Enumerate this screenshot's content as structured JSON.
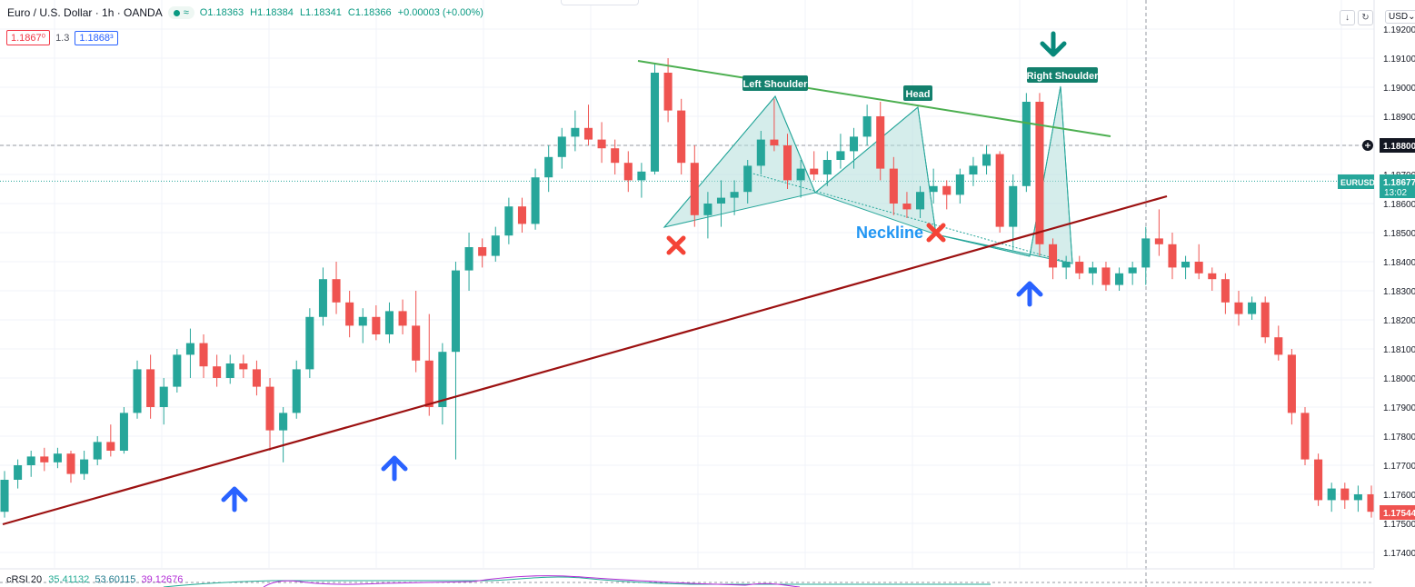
{
  "header": {
    "title": "Euro / U.S. Dollar · 1h · OANDA",
    "status_symbol": "≈",
    "ohlc": {
      "open": "O1.18363",
      "high": "H1.18384",
      "low": "L1.18341",
      "close": "C1.18366",
      "change": "+0.00003 (+0.00%)"
    }
  },
  "quotes": {
    "sell": "1.1867⁰",
    "spread": "1.3",
    "buy": "1.1868³"
  },
  "toolbar": {
    "currency": "USD⌄",
    "download_icon": "↓",
    "reload_icon": "↻"
  },
  "colors": {
    "up": "#26a69a",
    "down": "#ef5350",
    "trendline": "#9c1111",
    "resistance": "#4caf50",
    "pattern_fill": "#b2dfdb",
    "pattern_stroke": "#26a69a",
    "blue_marker": "#2962ff",
    "red_marker": "#f44336",
    "green_marker": "#08887a"
  },
  "price_axis": {
    "ticks": [
      "1.19200",
      "1.19100",
      "1.19000",
      "1.18900",
      "1.18800",
      "1.18700",
      "1.18600",
      "1.18500",
      "1.18400",
      "1.18300",
      "1.18200",
      "1.18100",
      "1.18000",
      "1.17900",
      "1.17800",
      "1.17700",
      "1.17600",
      "1.17500",
      "1.17400"
    ],
    "crosshair_label": "1.18800",
    "symbol_label": "EURUSD",
    "symbol_price": "1.18677",
    "countdown": "13:02",
    "last_price": "1.17544"
  },
  "annotations": {
    "left_shoulder": "Left Shoulder",
    "head": "Head",
    "right_shoulder": "Right Shoulder",
    "neckline": "Neckline"
  },
  "indicator": {
    "name": "cRSI 20",
    "v1": "35.41132",
    "v2": "53.60115",
    "v3": "39.12676"
  },
  "chart_data": {
    "type": "candlestick",
    "symbol": "Euro / U.S. Dollar",
    "timeframe": "1h",
    "ylim": [
      1.174,
      1.1925
    ],
    "candles": [
      [
        1.1754,
        1.1768,
        1.1752,
        1.1765
      ],
      [
        1.1765,
        1.1772,
        1.1762,
        1.177
      ],
      [
        1.177,
        1.1775,
        1.1766,
        1.1773
      ],
      [
        1.1773,
        1.1776,
        1.1768,
        1.1771
      ],
      [
        1.1771,
        1.1776,
        1.1769,
        1.1774
      ],
      [
        1.1774,
        1.1775,
        1.1764,
        1.1767
      ],
      [
        1.1767,
        1.1775,
        1.1765,
        1.1772
      ],
      [
        1.1772,
        1.178,
        1.177,
        1.1778
      ],
      [
        1.1778,
        1.1784,
        1.1773,
        1.1775
      ],
      [
        1.1775,
        1.179,
        1.1774,
        1.1788
      ],
      [
        1.1788,
        1.1806,
        1.1786,
        1.1803
      ],
      [
        1.1803,
        1.1808,
        1.1786,
        1.179
      ],
      [
        1.179,
        1.18,
        1.1784,
        1.1797
      ],
      [
        1.1797,
        1.181,
        1.1795,
        1.1808
      ],
      [
        1.1808,
        1.1817,
        1.18,
        1.1812
      ],
      [
        1.1812,
        1.1815,
        1.18,
        1.1804
      ],
      [
        1.1804,
        1.1808,
        1.1797,
        1.18
      ],
      [
        1.18,
        1.1808,
        1.1798,
        1.1805
      ],
      [
        1.1805,
        1.1808,
        1.18,
        1.1803
      ],
      [
        1.1803,
        1.1806,
        1.1794,
        1.1797
      ],
      [
        1.1797,
        1.18,
        1.1775,
        1.1782
      ],
      [
        1.1782,
        1.179,
        1.1771,
        1.1788
      ],
      [
        1.1788,
        1.1806,
        1.1786,
        1.1803
      ],
      [
        1.1803,
        1.1824,
        1.18,
        1.1821
      ],
      [
        1.1821,
        1.1838,
        1.1818,
        1.1834
      ],
      [
        1.1834,
        1.184,
        1.1822,
        1.1826
      ],
      [
        1.1826,
        1.183,
        1.1814,
        1.1818
      ],
      [
        1.1818,
        1.1824,
        1.1812,
        1.1821
      ],
      [
        1.1821,
        1.1825,
        1.1813,
        1.1815
      ],
      [
        1.1815,
        1.1826,
        1.1812,
        1.1823
      ],
      [
        1.1823,
        1.1827,
        1.1815,
        1.1818
      ],
      [
        1.1818,
        1.183,
        1.1802,
        1.1806
      ],
      [
        1.1806,
        1.1822,
        1.1787,
        1.179
      ],
      [
        1.179,
        1.1812,
        1.1784,
        1.1809
      ],
      [
        1.1809,
        1.184,
        1.1772,
        1.1837
      ],
      [
        1.1837,
        1.185,
        1.183,
        1.1845
      ],
      [
        1.1845,
        1.1848,
        1.1838,
        1.1842
      ],
      [
        1.1842,
        1.1852,
        1.184,
        1.1849
      ],
      [
        1.1849,
        1.1862,
        1.1846,
        1.1859
      ],
      [
        1.1859,
        1.1862,
        1.185,
        1.1853
      ],
      [
        1.1853,
        1.1872,
        1.1851,
        1.1869
      ],
      [
        1.1869,
        1.188,
        1.1864,
        1.1876
      ],
      [
        1.1876,
        1.1886,
        1.1872,
        1.1883
      ],
      [
        1.1883,
        1.1892,
        1.1878,
        1.1886
      ],
      [
        1.1886,
        1.1894,
        1.188,
        1.1882
      ],
      [
        1.1882,
        1.1888,
        1.1874,
        1.1879
      ],
      [
        1.1879,
        1.1882,
        1.187,
        1.1874
      ],
      [
        1.1874,
        1.1878,
        1.1864,
        1.1868
      ],
      [
        1.1868,
        1.1874,
        1.1862,
        1.1871
      ],
      [
        1.1871,
        1.1908,
        1.187,
        1.1905
      ],
      [
        1.1905,
        1.191,
        1.1888,
        1.1892
      ],
      [
        1.1892,
        1.1896,
        1.187,
        1.1874
      ],
      [
        1.1874,
        1.188,
        1.1852,
        1.1856
      ],
      [
        1.1856,
        1.1864,
        1.1848,
        1.186
      ],
      [
        1.186,
        1.1868,
        1.1852,
        1.1862
      ],
      [
        1.1862,
        1.1868,
        1.1856,
        1.1864
      ],
      [
        1.1864,
        1.1875,
        1.186,
        1.1873
      ],
      [
        1.1873,
        1.1885,
        1.187,
        1.1882
      ],
      [
        1.1882,
        1.1896,
        1.1878,
        1.188
      ],
      [
        1.188,
        1.1884,
        1.1865,
        1.1868
      ],
      [
        1.1868,
        1.1875,
        1.1862,
        1.1872
      ],
      [
        1.1872,
        1.1878,
        1.1868,
        1.187
      ],
      [
        1.187,
        1.1878,
        1.1866,
        1.1875
      ],
      [
        1.1875,
        1.1884,
        1.1872,
        1.1878
      ],
      [
        1.1878,
        1.1886,
        1.1872,
        1.1883
      ],
      [
        1.1883,
        1.1894,
        1.188,
        1.189
      ],
      [
        1.189,
        1.1895,
        1.1868,
        1.1872
      ],
      [
        1.1872,
        1.1876,
        1.1856,
        1.186
      ],
      [
        1.186,
        1.1864,
        1.1855,
        1.1858
      ],
      [
        1.1858,
        1.1866,
        1.1855,
        1.1864
      ],
      [
        1.1864,
        1.1872,
        1.186,
        1.1866
      ],
      [
        1.1866,
        1.1868,
        1.1858,
        1.1863
      ],
      [
        1.1863,
        1.1872,
        1.186,
        1.187
      ],
      [
        1.187,
        1.1876,
        1.1866,
        1.1873
      ],
      [
        1.1873,
        1.188,
        1.187,
        1.1877
      ],
      [
        1.1877,
        1.1878,
        1.185,
        1.1852
      ],
      [
        1.1852,
        1.187,
        1.1844,
        1.1866
      ],
      [
        1.1866,
        1.1898,
        1.1864,
        1.1895
      ],
      [
        1.1895,
        1.1898,
        1.1842,
        1.1846
      ],
      [
        1.1846,
        1.1848,
        1.1834,
        1.1838
      ],
      [
        1.1838,
        1.1842,
        1.1834,
        1.184
      ],
      [
        1.184,
        1.1842,
        1.1834,
        1.1836
      ],
      [
        1.1836,
        1.184,
        1.1832,
        1.1838
      ],
      [
        1.1838,
        1.184,
        1.183,
        1.1832
      ],
      [
        1.1832,
        1.1838,
        1.183,
        1.1836
      ],
      [
        1.1836,
        1.184,
        1.1832,
        1.1838
      ],
      [
        1.1838,
        1.1852,
        1.1832,
        1.1848
      ],
      [
        1.1848,
        1.1858,
        1.1842,
        1.1846
      ],
      [
        1.1846,
        1.185,
        1.1834,
        1.1838
      ],
      [
        1.1838,
        1.1842,
        1.1834,
        1.184
      ],
      [
        1.184,
        1.1846,
        1.1834,
        1.1836
      ],
      [
        1.1836,
        1.1838,
        1.183,
        1.1834
      ],
      [
        1.1834,
        1.1836,
        1.1822,
        1.1826
      ],
      [
        1.1826,
        1.183,
        1.1818,
        1.1822
      ],
      [
        1.1822,
        1.1828,
        1.182,
        1.1826
      ],
      [
        1.1826,
        1.1828,
        1.1812,
        1.1814
      ],
      [
        1.1814,
        1.1818,
        1.1806,
        1.1808
      ],
      [
        1.1808,
        1.181,
        1.1784,
        1.1788
      ],
      [
        1.1788,
        1.179,
        1.177,
        1.1772
      ],
      [
        1.1772,
        1.1774,
        1.1756,
        1.1758
      ],
      [
        1.1758,
        1.1764,
        1.1754,
        1.1762
      ],
      [
        1.1762,
        1.1764,
        1.1755,
        1.1758
      ],
      [
        1.1758,
        1.1763,
        1.1754,
        1.176
      ],
      [
        1.176,
        1.1763,
        1.1752,
        1.1754
      ]
    ],
    "lines": [
      {
        "name": "trendline",
        "from": [
          1.175
        ],
        "to": [
          1.1862
        ]
      },
      {
        "name": "resistance",
        "from": [
          1.191
        ],
        "to": [
          1.1883
        ]
      }
    ],
    "pattern": [
      "Left Shoulder",
      "Head",
      "Right Shoulder",
      "Neckline"
    ]
  }
}
